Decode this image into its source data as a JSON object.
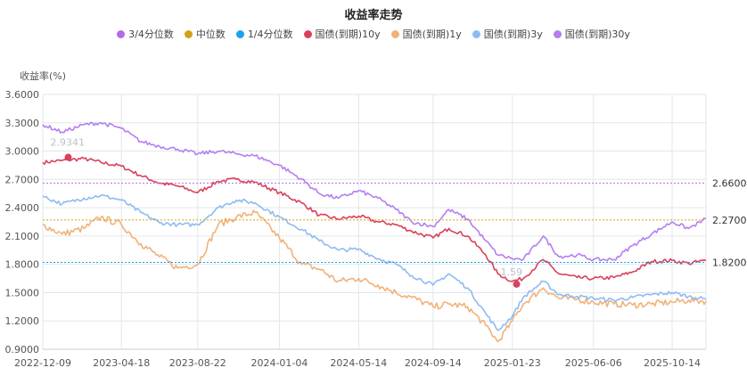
{
  "chart_data": {
    "type": "line",
    "title": "收益率走势",
    "ylabel": "收益率(%)",
    "ylim": [
      0.9,
      3.6
    ],
    "yticks": [
      "3.6000",
      "3.3000",
      "3.0000",
      "2.7000",
      "2.4000",
      "2.1000",
      "1.8000",
      "1.5000",
      "1.2000",
      "0.9000"
    ],
    "xticks": [
      "2022-12-09",
      "2023-04-18",
      "2023-08-22",
      "2024-01-04",
      "2024-05-14",
      "2024-09-14",
      "2025-01-23",
      "2025-06-06",
      "2025-10-14"
    ],
    "x_start": "2022-12-09",
    "x_end": "2025-12-09",
    "grid": true,
    "legend_position": "top-center",
    "reference_lines": [
      {
        "name": "3/4分位数",
        "value": 2.66,
        "label": "2.6600",
        "color": "#b36be8"
      },
      {
        "name": "中位数",
        "value": 2.27,
        "label": "2.2700",
        "color": "#d4a017"
      },
      {
        "name": "1/4分位数",
        "value": 1.82,
        "label": "1.8200",
        "color": "#1aa3e8"
      }
    ],
    "series": [
      {
        "name": "国债(到期)10y",
        "color": "#d9415b",
        "points": [
          [
            "2022-12-09",
            2.88
          ],
          [
            "2023-01-10",
            2.9
          ],
          [
            "2023-02-15",
            2.92
          ],
          [
            "2023-03-15",
            2.88
          ],
          [
            "2023-04-18",
            2.84
          ],
          [
            "2023-05-20",
            2.74
          ],
          [
            "2023-06-20",
            2.66
          ],
          [
            "2023-07-20",
            2.63
          ],
          [
            "2023-08-22",
            2.56
          ],
          [
            "2023-09-25",
            2.68
          ],
          [
            "2023-10-25",
            2.7
          ],
          [
            "2023-11-25",
            2.67
          ],
          [
            "2024-01-04",
            2.56
          ],
          [
            "2024-02-10",
            2.45
          ],
          [
            "2024-03-10",
            2.32
          ],
          [
            "2024-04-10",
            2.28
          ],
          [
            "2024-05-14",
            2.31
          ],
          [
            "2024-06-15",
            2.25
          ],
          [
            "2024-07-15",
            2.22
          ],
          [
            "2024-08-10",
            2.15
          ],
          [
            "2024-09-14",
            2.08
          ],
          [
            "2024-10-10",
            2.18
          ],
          [
            "2024-11-10",
            2.1
          ],
          [
            "2024-12-10",
            1.9
          ],
          [
            "2024-12-30",
            1.7
          ],
          [
            "2025-01-23",
            1.62
          ],
          [
            "2025-02-10",
            1.65
          ],
          [
            "2025-03-15",
            1.85
          ],
          [
            "2025-04-10",
            1.7
          ],
          [
            "2025-05-10",
            1.66
          ],
          [
            "2025-06-06",
            1.65
          ],
          [
            "2025-07-10",
            1.66
          ],
          [
            "2025-08-10",
            1.72
          ],
          [
            "2025-09-10",
            1.83
          ],
          [
            "2025-10-14",
            1.84
          ],
          [
            "2025-11-10",
            1.81
          ],
          [
            "2025-12-09",
            1.84
          ]
        ]
      },
      {
        "name": "国债(到期)1y",
        "color": "#f0b27a",
        "points": [
          [
            "2022-12-09",
            2.22
          ],
          [
            "2023-01-10",
            2.12
          ],
          [
            "2023-02-15",
            2.18
          ],
          [
            "2023-03-15",
            2.3
          ],
          [
            "2023-04-18",
            2.22
          ],
          [
            "2023-05-20",
            2.02
          ],
          [
            "2023-06-20",
            1.88
          ],
          [
            "2023-07-20",
            1.76
          ],
          [
            "2023-08-22",
            1.8
          ],
          [
            "2023-09-25",
            2.22
          ],
          [
            "2023-10-25",
            2.3
          ],
          [
            "2023-11-25",
            2.35
          ],
          [
            "2024-01-04",
            2.08
          ],
          [
            "2024-02-10",
            1.8
          ],
          [
            "2024-03-10",
            1.75
          ],
          [
            "2024-04-10",
            1.62
          ],
          [
            "2024-05-14",
            1.65
          ],
          [
            "2024-06-15",
            1.58
          ],
          [
            "2024-07-15",
            1.5
          ],
          [
            "2024-08-10",
            1.45
          ],
          [
            "2024-09-14",
            1.35
          ],
          [
            "2024-10-10",
            1.38
          ],
          [
            "2024-11-10",
            1.35
          ],
          [
            "2024-12-10",
            1.15
          ],
          [
            "2024-12-30",
            0.98
          ],
          [
            "2025-01-23",
            1.2
          ],
          [
            "2025-02-10",
            1.38
          ],
          [
            "2025-03-15",
            1.55
          ],
          [
            "2025-04-10",
            1.44
          ],
          [
            "2025-05-10",
            1.43
          ],
          [
            "2025-06-06",
            1.4
          ],
          [
            "2025-07-10",
            1.38
          ],
          [
            "2025-08-10",
            1.37
          ],
          [
            "2025-09-10",
            1.38
          ],
          [
            "2025-10-14",
            1.4
          ],
          [
            "2025-11-10",
            1.42
          ],
          [
            "2025-12-09",
            1.41
          ]
        ]
      },
      {
        "name": "国债(到期)3y",
        "color": "#8dbbf2",
        "points": [
          [
            "2022-12-09",
            2.52
          ],
          [
            "2023-01-10",
            2.44
          ],
          [
            "2023-02-15",
            2.5
          ],
          [
            "2023-03-15",
            2.53
          ],
          [
            "2023-04-18",
            2.48
          ],
          [
            "2023-05-20",
            2.35
          ],
          [
            "2023-06-20",
            2.24
          ],
          [
            "2023-07-20",
            2.22
          ],
          [
            "2023-08-22",
            2.22
          ],
          [
            "2023-09-25",
            2.4
          ],
          [
            "2023-10-25",
            2.48
          ],
          [
            "2023-11-25",
            2.45
          ],
          [
            "2024-01-04",
            2.3
          ],
          [
            "2024-02-10",
            2.17
          ],
          [
            "2024-03-10",
            2.05
          ],
          [
            "2024-04-10",
            1.95
          ],
          [
            "2024-05-14",
            1.96
          ],
          [
            "2024-06-15",
            1.86
          ],
          [
            "2024-07-15",
            1.8
          ],
          [
            "2024-08-10",
            1.68
          ],
          [
            "2024-09-14",
            1.58
          ],
          [
            "2024-10-10",
            1.7
          ],
          [
            "2024-11-10",
            1.55
          ],
          [
            "2024-12-10",
            1.28
          ],
          [
            "2024-12-30",
            1.1
          ],
          [
            "2025-01-23",
            1.25
          ],
          [
            "2025-02-10",
            1.45
          ],
          [
            "2025-03-15",
            1.62
          ],
          [
            "2025-04-10",
            1.48
          ],
          [
            "2025-05-10",
            1.46
          ],
          [
            "2025-06-06",
            1.44
          ],
          [
            "2025-07-10",
            1.42
          ],
          [
            "2025-08-10",
            1.45
          ],
          [
            "2025-09-10",
            1.48
          ],
          [
            "2025-10-14",
            1.5
          ],
          [
            "2025-11-10",
            1.46
          ],
          [
            "2025-12-09",
            1.43
          ]
        ]
      },
      {
        "name": "国债(到期)30y",
        "color": "#b37ff0",
        "points": [
          [
            "2022-12-09",
            3.28
          ],
          [
            "2023-01-10",
            3.2
          ],
          [
            "2023-02-15",
            3.28
          ],
          [
            "2023-03-15",
            3.3
          ],
          [
            "2023-04-18",
            3.24
          ],
          [
            "2023-05-20",
            3.1
          ],
          [
            "2023-06-20",
            3.05
          ],
          [
            "2023-07-20",
            3.02
          ],
          [
            "2023-08-22",
            2.97
          ],
          [
            "2023-09-25",
            3.0
          ],
          [
            "2023-10-25",
            2.97
          ],
          [
            "2023-11-25",
            2.95
          ],
          [
            "2024-01-04",
            2.85
          ],
          [
            "2024-02-10",
            2.7
          ],
          [
            "2024-03-10",
            2.55
          ],
          [
            "2024-04-10",
            2.5
          ],
          [
            "2024-05-14",
            2.58
          ],
          [
            "2024-06-15",
            2.5
          ],
          [
            "2024-07-15",
            2.38
          ],
          [
            "2024-08-10",
            2.25
          ],
          [
            "2024-09-14",
            2.2
          ],
          [
            "2024-10-10",
            2.38
          ],
          [
            "2024-11-10",
            2.28
          ],
          [
            "2024-12-10",
            2.05
          ],
          [
            "2024-12-30",
            1.9
          ],
          [
            "2025-01-23",
            1.86
          ],
          [
            "2025-02-10",
            1.85
          ],
          [
            "2025-03-15",
            2.1
          ],
          [
            "2025-04-10",
            1.88
          ],
          [
            "2025-05-10",
            1.9
          ],
          [
            "2025-06-06",
            1.85
          ],
          [
            "2025-07-10",
            1.85
          ],
          [
            "2025-08-10",
            2.0
          ],
          [
            "2025-09-10",
            2.12
          ],
          [
            "2025-10-14",
            2.25
          ],
          [
            "2025-11-10",
            2.18
          ],
          [
            "2025-12-09",
            2.28
          ]
        ]
      }
    ],
    "markers": [
      {
        "series": "国债(到期)10y",
        "date": "2023-01-20",
        "value": 2.9341,
        "label": "2.9341",
        "color": "#d9415b"
      },
      {
        "series": "国债(到期)10y",
        "date": "2025-01-30",
        "value": 1.59,
        "label": "1.59",
        "color": "#d9415b"
      }
    ]
  },
  "legend": [
    {
      "label": "3/4分位数",
      "color": "#b36be8"
    },
    {
      "label": "中位数",
      "color": "#d4a017"
    },
    {
      "label": "1/4分位数",
      "color": "#1aa3e8"
    },
    {
      "label": "国债(到期)10y",
      "color": "#d9415b"
    },
    {
      "label": "国债(到期)1y",
      "color": "#f0b27a"
    },
    {
      "label": "国债(到期)3y",
      "color": "#8dbbf2"
    },
    {
      "label": "国债(到期)30y",
      "color": "#b37ff0"
    }
  ]
}
